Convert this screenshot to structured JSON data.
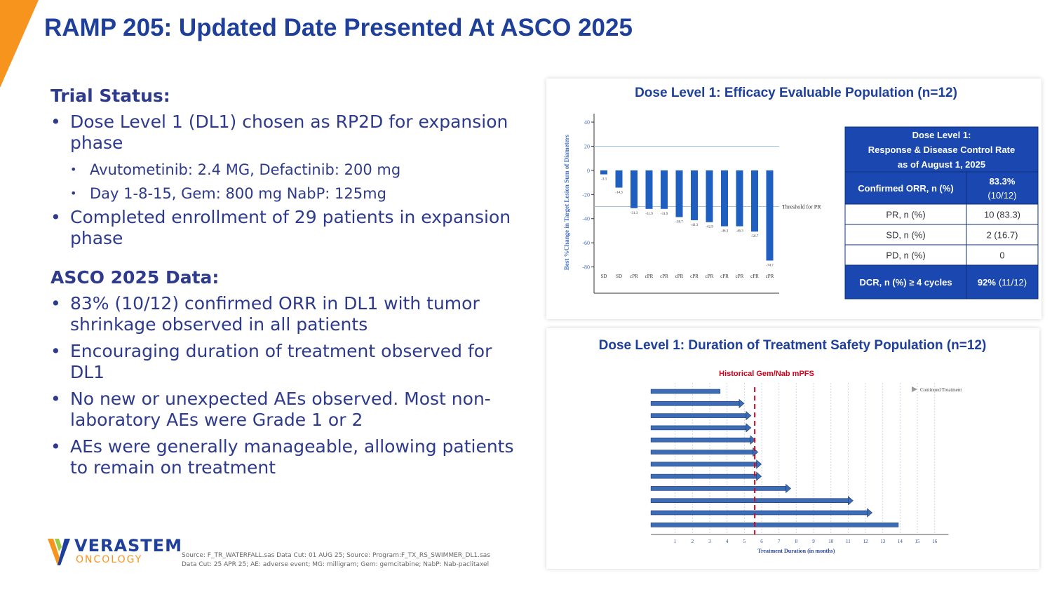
{
  "header": {
    "title": "RAMP 205: Updated Date Presented At ASCO 2025"
  },
  "sections": [
    {
      "heading": "Trial Status:",
      "bullets": [
        {
          "text": "Dose Level 1 (DL1) chosen as RP2D for expansion phase",
          "sub": [
            "Avutometinib: 2.4 MG, Defactinib: 200 mg",
            "Day 1-8-15, Gem: 800 mg NabP: 125mg"
          ]
        },
        {
          "text": "Completed enrollment of 29 patients in expansion phase",
          "sub": []
        }
      ]
    },
    {
      "heading": "ASCO 2025 Data:",
      "bullets": [
        {
          "text": "83% (10/12) confirmed ORR in DL1 with tumor shrinkage observed in all patients",
          "sub": []
        },
        {
          "text": "Encouraging duration of treatment observed for DL1",
          "sub": []
        },
        {
          "text": "No new or unexpected AEs observed. Most non-laboratory AEs were Grade 1 or 2",
          "sub": []
        },
        {
          "text": "AEs were generally manageable, allowing patients to remain on treatment",
          "sub": []
        }
      ]
    }
  ],
  "waterfall": {
    "type": "bar",
    "title": "Dose Level 1: Efficacy Evaluable Population (n=12)",
    "y_label": "Best %Change in Target Lesion Sum of Diameters",
    "categories": [
      "SD",
      "SD",
      "cPR",
      "cPR",
      "cPR",
      "cPR",
      "cPR",
      "cPR",
      "cPR",
      "cPR",
      "cPR",
      "cPR"
    ],
    "values": [
      -3.3,
      -14.3,
      -31.3,
      -31.9,
      -31.9,
      -38.7,
      -41.3,
      -42.9,
      -46.3,
      -46.3,
      -50.7,
      -74.7
    ],
    "color": "#1f5fbf",
    "ylim": [
      -100,
      47
    ],
    "yticks": [
      40,
      20,
      0,
      -20,
      -40,
      -60,
      -80
    ],
    "reference_line": 20,
    "threshold": -30,
    "threshold_label": "Threshold for PR"
  },
  "table": {
    "header": [
      "Dose Level 1:",
      "Response & Disease Control Rate",
      "as of August 1, 2025"
    ],
    "rows": [
      [
        "Confirmed ORR, n (%)",
        "83.3%",
        "(10/12)"
      ],
      [
        "PR, n (%)",
        "10 (83.3)"
      ],
      [
        "SD, n (%)",
        "2 (16.7)"
      ],
      [
        "PD, n (%)",
        "0"
      ],
      [
        "DCR, n (%) ≥ 4 cycles",
        "92%",
        "(11/12)"
      ]
    ]
  },
  "swimmer": {
    "type": "swimmer",
    "title": "Dose Level 1: Duration of Treatment Safety Population (n=12)",
    "annotation": "Historical Gem/Nab mPFS",
    "annotation_x": 5.6,
    "legend": "Continued Treatment",
    "x_label": "Treatment Duration (in months)",
    "values": [
      3.6,
      4.7,
      5.1,
      5.1,
      5.35,
      5.5,
      5.7,
      5.7,
      7.4,
      11.0,
      12.1,
      13.9
    ],
    "ongoing": [
      false,
      true,
      true,
      true,
      true,
      true,
      true,
      true,
      true,
      true,
      true,
      false
    ],
    "color": "#3b6cb5",
    "xlim": [
      -0.4,
      16.8
    ],
    "xticks": [
      1,
      2,
      3,
      4,
      5,
      6,
      7,
      8,
      9,
      10,
      11,
      12,
      13,
      14,
      15,
      16
    ]
  },
  "footer": {
    "logo": "VERASTEM",
    "logo_sub": "ONCOLOGY",
    "source": [
      "Source: F_TR_WATERFALL.sas Data Cut: 01 AUG 25; Source: Program:F_TX_RS_SWIMMER_DL1.sas",
      "Data Cut: 25 APR 25; AE: adverse event; MG: milligram; Gem: gemcitabine; NabP: Nab-paclitaxel"
    ]
  }
}
